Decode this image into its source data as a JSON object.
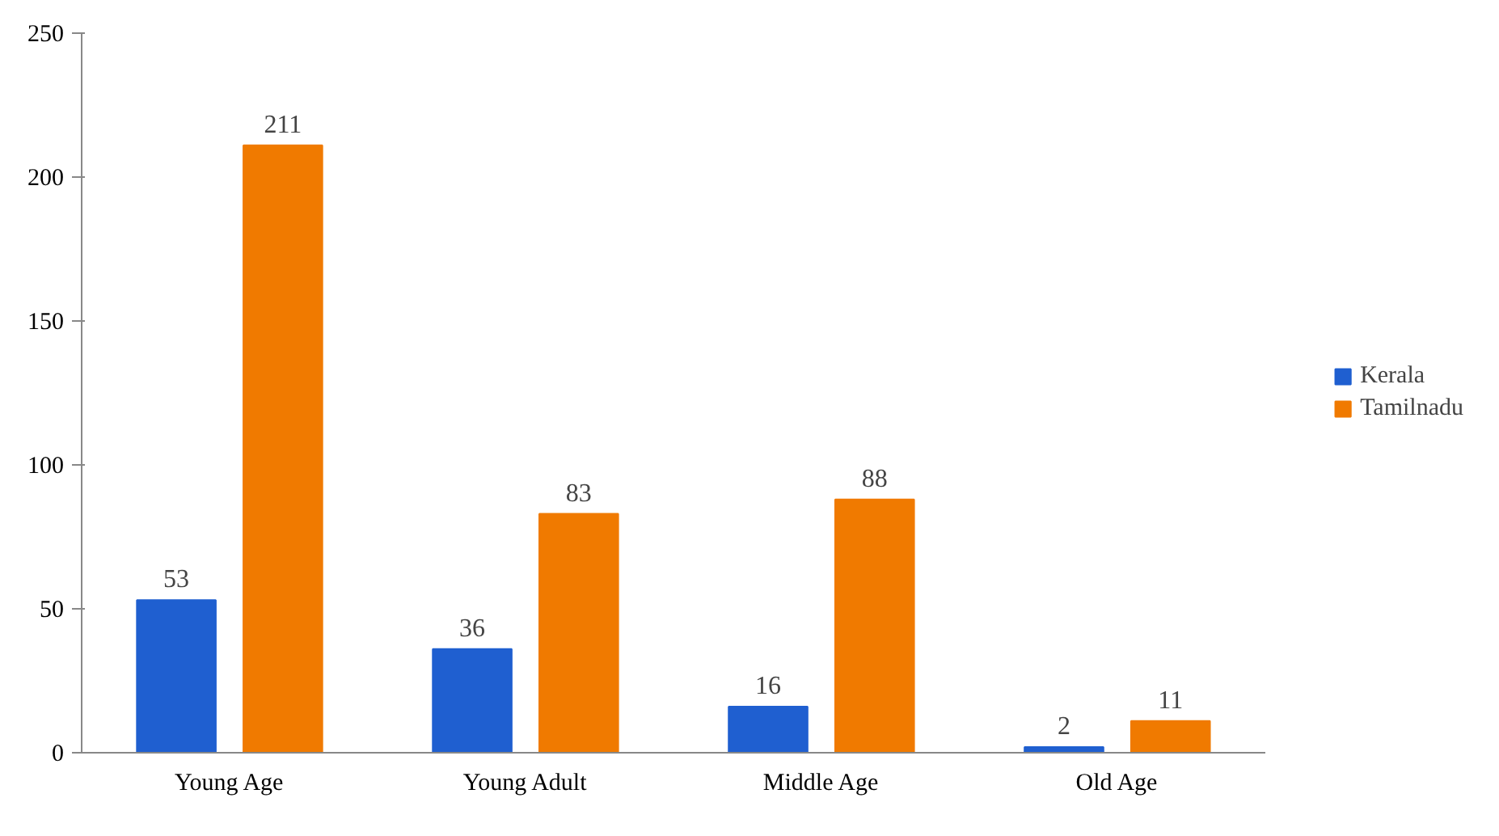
{
  "chart_data": {
    "type": "bar",
    "categories": [
      "Young Age",
      "Young Adult",
      "Middle Age",
      "Old Age"
    ],
    "series": [
      {
        "name": "Kerala",
        "color": "#1f5fd0",
        "values": [
          53,
          36,
          16,
          2
        ]
      },
      {
        "name": "Tamilnadu",
        "color": "#f07a00",
        "values": [
          211,
          83,
          88,
          11
        ]
      }
    ],
    "ylim": [
      0,
      250
    ],
    "yticks": [
      0,
      50,
      100,
      150,
      200,
      250
    ],
    "grid": false,
    "legend": "right",
    "data_labels": true
  }
}
